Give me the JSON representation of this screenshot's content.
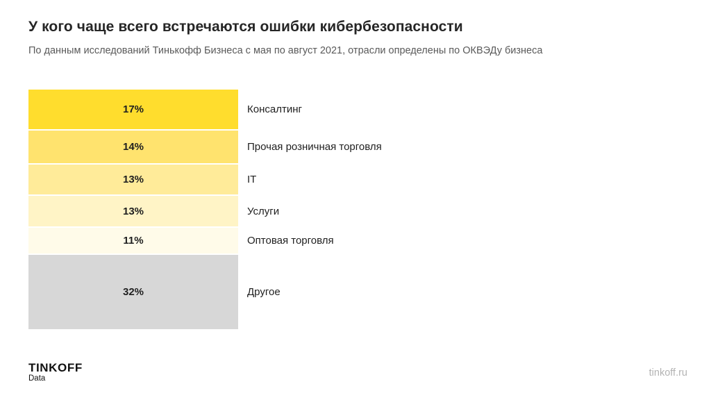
{
  "header": {
    "title": "У кого чаще всего встречаются ошибки кибербезопасности",
    "subtitle": "По данным исследований Тинькофф Бизнеса с мая по август 2021, отрасли определены по ОКВЭДу бизнеса"
  },
  "chart_data": {
    "type": "bar",
    "orientation": "vertical-stacked-percentage-list",
    "title": "У кого чаще всего встречаются ошибки кибербезопасности",
    "unit": "%",
    "total": 100,
    "categories": [
      "Консалтинг",
      "Прочая розничная торговля",
      "IT",
      "Услуги",
      "Оптовая торговля",
      "Другое"
    ],
    "values": [
      17,
      14,
      13,
      13,
      11,
      32
    ],
    "value_labels": [
      "17%",
      "14%",
      "13%",
      "13%",
      "11%",
      "32%"
    ],
    "colors": [
      "#ffdd2d",
      "#ffe36e",
      "#ffeb99",
      "#fff4c6",
      "#fffbe9",
      "#d7d7d7"
    ],
    "accent_color": "#ffdd2d",
    "other_color": "#d7d7d7",
    "segment_gap_color": "#ffffff",
    "legend_position": "right-of-bars",
    "grid": false,
    "axes": false
  },
  "footer": {
    "logo_primary": "TINKOFF",
    "logo_secondary": "Data",
    "link": "tinkoff.ru"
  }
}
